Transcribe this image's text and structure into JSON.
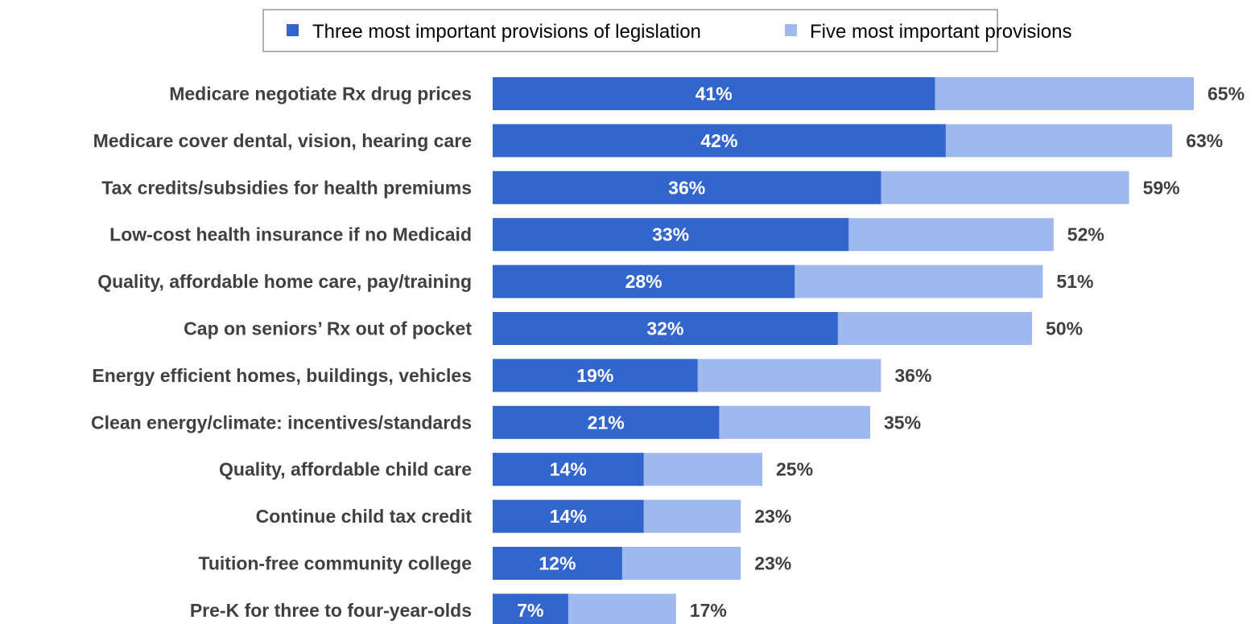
{
  "chart_data": {
    "type": "bar",
    "orientation": "horizontal",
    "layout": "overlapping",
    "title": "",
    "xlabel": "",
    "ylabel": "",
    "xlim": [
      0,
      100
    ],
    "grid": false,
    "legend_position": "top",
    "categories": [
      "Medicare negotiate Rx drug prices",
      "Medicare cover dental, vision, hearing care",
      "Tax credits/subsidies for health premiums",
      "Low-cost health insurance if no Medicaid",
      "Quality, affordable home care, pay/training",
      "Cap on seniors’ Rx out of pocket",
      "Energy efficient homes, buildings, vehicles",
      "Clean energy/climate: incentives/standards",
      "Quality, affordable child care",
      "Continue child tax credit",
      "Tuition-free community college",
      "Pre-K for three to four-year-olds"
    ],
    "series": [
      {
        "name": "Three most important provisions of legislation",
        "color": "#3366CC",
        "values": [
          41,
          42,
          36,
          33,
          28,
          32,
          19,
          21,
          14,
          14,
          12,
          7
        ],
        "labels": [
          "41%",
          "42%",
          "36%",
          "33%",
          "28%",
          "32%",
          "19%",
          "21%",
          "14%",
          "14%",
          "12%",
          "7%"
        ]
      },
      {
        "name": "Five most important provisions",
        "color": "#9FB8EE",
        "values": [
          65,
          63,
          59,
          52,
          51,
          50,
          36,
          35,
          25,
          23,
          23,
          17
        ],
        "labels": [
          "65%",
          "63%",
          "59%",
          "52%",
          "51%",
          "50%",
          "36%",
          "35%",
          "25%",
          "23%",
          "23%",
          "17%"
        ]
      }
    ]
  }
}
